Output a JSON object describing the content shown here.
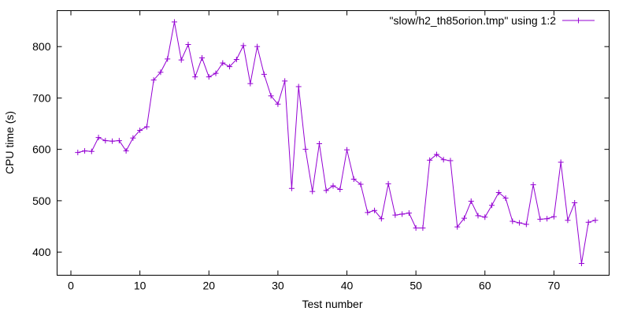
{
  "chart_data": {
    "type": "line",
    "title": "",
    "xlabel": "Test number",
    "ylabel": "CPU time (s)",
    "xlim": [
      -2,
      78
    ],
    "ylim": [
      355,
      870
    ],
    "xticks": [
      0,
      10,
      20,
      30,
      40,
      50,
      60,
      70
    ],
    "yticks": [
      400,
      500,
      600,
      700,
      800
    ],
    "legend_position": "top-right",
    "grid": false,
    "series": [
      {
        "name": "\"slow/h2_th85orion.tmp\" using 1:2",
        "color": "#9400d3",
        "marker": "plus",
        "x": [
          1,
          2,
          3,
          4,
          5,
          6,
          7,
          8,
          9,
          10,
          11,
          12,
          13,
          14,
          15,
          16,
          17,
          18,
          19,
          20,
          21,
          22,
          23,
          24,
          25,
          26,
          27,
          28,
          29,
          30,
          31,
          32,
          33,
          34,
          35,
          36,
          37,
          38,
          39,
          40,
          41,
          42,
          43,
          44,
          45,
          46,
          47,
          48,
          49,
          50,
          51,
          52,
          53,
          54,
          55,
          56,
          57,
          58,
          59,
          60,
          61,
          62,
          63,
          64,
          65,
          66,
          67,
          68,
          69,
          70,
          71,
          72,
          73,
          74,
          75,
          76
        ],
        "y": [
          594,
          597,
          596,
          623,
          617,
          616,
          617,
          597,
          622,
          637,
          644,
          735,
          750,
          776,
          848,
          774,
          804,
          741,
          778,
          741,
          748,
          768,
          761,
          775,
          802,
          728,
          800,
          746,
          704,
          688,
          733,
          524,
          722,
          600,
          518,
          611,
          520,
          529,
          522,
          599,
          542,
          532,
          477,
          481,
          465,
          533,
          472,
          474,
          476,
          447,
          447,
          579,
          590,
          580,
          578,
          449,
          466,
          499,
          471,
          468,
          491,
          516,
          505,
          460,
          457,
          454,
          531,
          464,
          465,
          469,
          575,
          462,
          496,
          378,
          458,
          462
        ]
      }
    ]
  }
}
